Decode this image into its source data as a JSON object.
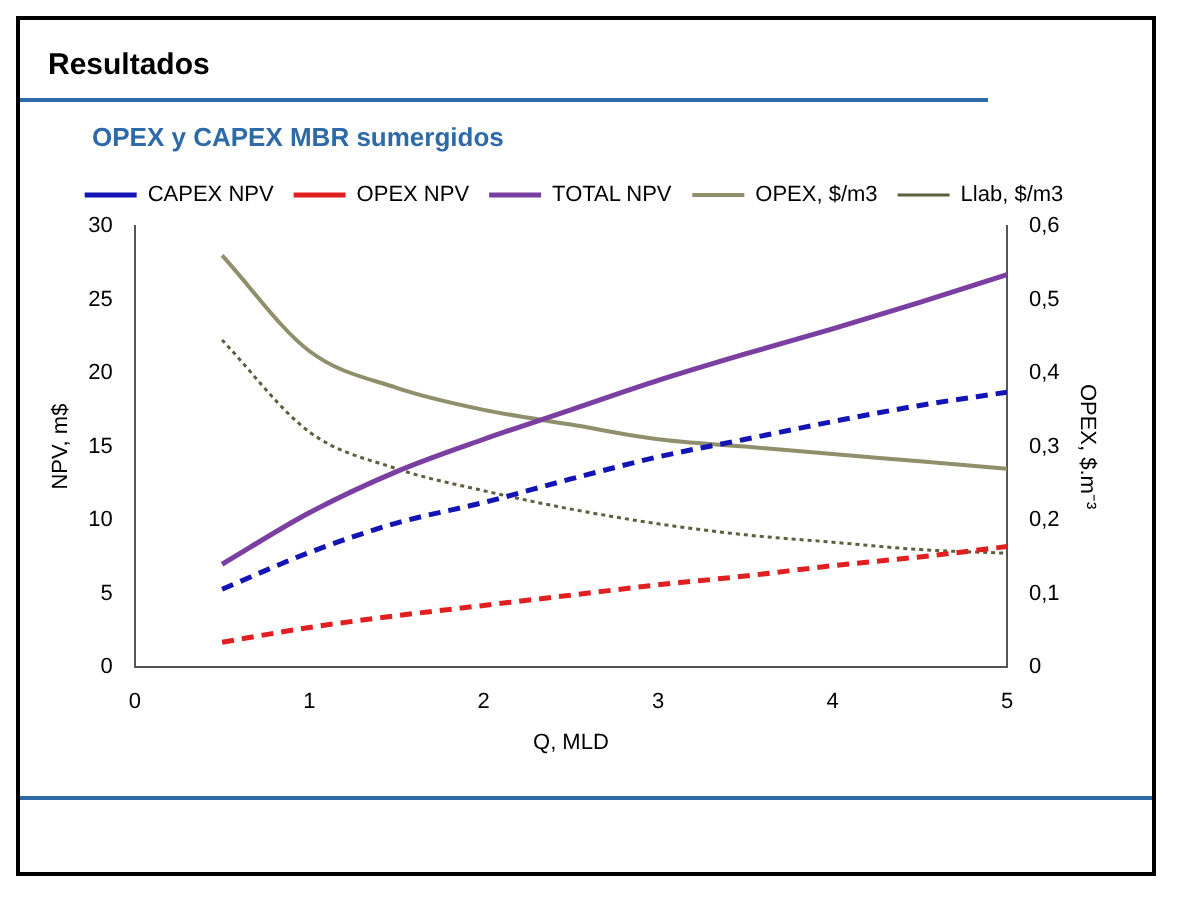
{
  "chart_data": {
    "type": "line",
    "title": "Resultados",
    "subtitle": "OPEX y CAPEX MBR sumergidos",
    "xlabel": "Q, MLD",
    "ylabel": "NPV, m$",
    "y2label": "OPEX, $.m⁻³",
    "x": [
      0.5,
      1,
      1.5,
      2,
      2.5,
      3,
      3.5,
      4,
      4.5,
      5
    ],
    "xlim": [
      0,
      5
    ],
    "xticks": [
      0,
      1,
      2,
      3,
      4,
      5
    ],
    "ylim": [
      0,
      30
    ],
    "yticks": [
      0,
      5,
      10,
      15,
      20,
      25,
      30
    ],
    "y2lim": [
      0,
      0.6
    ],
    "y2ticks": [
      {
        "value": 0,
        "label": "0"
      },
      {
        "value": 0.1,
        "label": "0,1"
      },
      {
        "value": 0.2,
        "label": "0,2"
      },
      {
        "value": 0.3,
        "label": "0,3"
      },
      {
        "value": 0.4,
        "label": "0,4"
      },
      {
        "value": 0.5,
        "label": "0,5"
      },
      {
        "value": 0.6,
        "label": "0,6"
      }
    ],
    "legend": "top",
    "grid": false,
    "marker": "none",
    "series": [
      {
        "name": "CAPEX NPV",
        "color": "#1414b4",
        "line_style": "dashed",
        "values": [
          5.3,
          7.8,
          9.8,
          11.2,
          12.8,
          14.3,
          15.5,
          16.7,
          17.8,
          18.7
        ]
      },
      {
        "name": "OPEX NPV",
        "color": "#e02020",
        "line_style": "dashed",
        "values": [
          1.7,
          2.7,
          3.5,
          4.2,
          4.9,
          5.6,
          6.2,
          6.9,
          7.5,
          8.2
        ]
      },
      {
        "name": "TOTAL NPV",
        "color": "#7a3fa0",
        "line_style": "solid",
        "values": [
          7.0,
          10.5,
          13.3,
          15.5,
          17.5,
          19.5,
          21.3,
          23.0,
          24.8,
          26.7
        ]
      },
      {
        "name": "OPEX, $/m3",
        "color": "#8f8f6c",
        "line_style": "solid",
        "axis": "y2",
        "values": [
          0.56,
          0.43,
          0.38,
          0.35,
          0.33,
          0.31,
          0.3,
          0.29,
          0.28,
          0.27
        ]
      },
      {
        "name": "Llab, $/m3",
        "color": "#5e5e40",
        "line_style": "dotted",
        "axis": "y2",
        "values": [
          0.445,
          0.32,
          0.27,
          0.24,
          0.215,
          0.195,
          0.18,
          0.17,
          0.16,
          0.155
        ]
      }
    ]
  }
}
